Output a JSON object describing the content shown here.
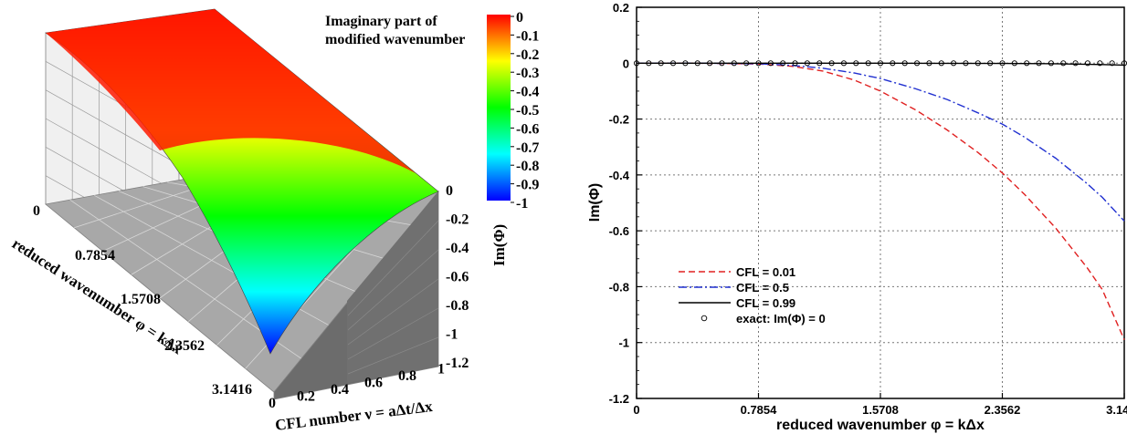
{
  "chart_data": [
    {
      "type": "surface",
      "colorbar": {
        "title_line1": "Imaginary part of",
        "title_line2": "modified wavenumber",
        "ticks": [
          "0",
          "-0.1",
          "-0.2",
          "-0.3",
          "-0.4",
          "-0.5",
          "-0.6",
          "-0.7",
          "-0.8",
          "-0.9",
          "-1"
        ],
        "range": [
          -1,
          0
        ],
        "colors": [
          "#0000ff",
          "#00ffff",
          "#00ff00",
          "#ffff00",
          "#ff0000"
        ]
      },
      "phi_axis": {
        "label": "reduced wavenumber φ = kΔx",
        "ticks": [
          "0",
          "0.7854",
          "1.5708",
          "2.3562",
          "3.1416"
        ]
      },
      "cfl_axis": {
        "label": "CFL number ν = aΔt/Δx",
        "ticks": [
          "0",
          "0.2",
          "0.4",
          "0.6",
          "0.8",
          "1"
        ]
      },
      "z_axis": {
        "label": "Im(Φ)",
        "ticks": [
          "0",
          "-0.2",
          "-0.4",
          "-0.6",
          "-0.8",
          "-1",
          "-1.2"
        ],
        "range": [
          -1.2,
          0
        ]
      },
      "surface_min": {
        "phi": 3.1416,
        "cfl": 0.01,
        "im_phi": -1.0
      }
    },
    {
      "type": "line",
      "xlabel": "reduced wavenumber φ = kΔx",
      "ylabel": "Im(Φ)",
      "xlim": [
        0,
        3.1416
      ],
      "ylim": [
        -1.2,
        0.2
      ],
      "x_ticks": [
        "0",
        "0.7854",
        "1.5708",
        "2.3562",
        "3.1416"
      ],
      "y_ticks": [
        "0.2",
        "0",
        "-0.2",
        "-0.4",
        "-0.6",
        "-0.8",
        "-1",
        "-1.2"
      ],
      "grid": true,
      "legend_position": "bottom-left",
      "series": [
        {
          "name": "CFL = 0.01",
          "color": "#e02020",
          "style": "dashed",
          "x": [
            0,
            0.4,
            0.7854,
            1.0,
            1.2,
            1.4,
            1.5708,
            1.8,
            2.0,
            2.2,
            2.3562,
            2.5,
            2.7,
            2.9,
            3.0,
            3.1416
          ],
          "y": [
            0,
            0,
            -0.003,
            -0.011,
            -0.028,
            -0.06,
            -0.1,
            -0.168,
            -0.239,
            -0.32,
            -0.393,
            -0.47,
            -0.59,
            -0.73,
            -0.81,
            -0.99
          ]
        },
        {
          "name": "CFL = 0.5",
          "color": "#2030d0",
          "style": "dashdot",
          "x": [
            0,
            0.4,
            0.7854,
            1.0,
            1.2,
            1.4,
            1.5708,
            1.8,
            2.0,
            2.2,
            2.3562,
            2.5,
            2.7,
            2.9,
            3.0,
            3.1416
          ],
          "y": [
            0,
            0,
            -0.002,
            -0.008,
            -0.018,
            -0.035,
            -0.055,
            -0.092,
            -0.13,
            -0.178,
            -0.218,
            -0.265,
            -0.34,
            -0.43,
            -0.48,
            -0.565
          ]
        },
        {
          "name": "CFL = 0.99",
          "color": "#000000",
          "style": "solid",
          "x": [
            0,
            0.7854,
            1.5708,
            2.3562,
            2.7,
            3.0,
            3.1416
          ],
          "y": [
            0,
            0,
            0,
            -0.001,
            -0.002,
            -0.005,
            -0.007
          ]
        },
        {
          "name": "exact: Im(Φ) = 0",
          "color": "#000000",
          "style": "circles",
          "x": [
            0,
            0.0785,
            0.1571,
            0.2356,
            0.3142,
            0.3927,
            0.4712,
            0.5498,
            0.6283,
            0.7069,
            0.7854,
            0.8639,
            0.9425,
            1.021,
            1.0996,
            1.1781,
            1.2566,
            1.3352,
            1.4137,
            1.4923,
            1.5708,
            1.6493,
            1.7279,
            1.8064,
            1.885,
            1.9635,
            2.042,
            2.1206,
            2.1991,
            2.2777,
            2.3562,
            2.4347,
            2.5133,
            2.5918,
            2.6704,
            2.7489,
            2.8274,
            2.906,
            2.9845,
            3.0631,
            3.1416
          ],
          "y": [
            0,
            0,
            0,
            0,
            0,
            0,
            0,
            0,
            0,
            0,
            0,
            0,
            0,
            0,
            0,
            0,
            0,
            0,
            0,
            0,
            0,
            0,
            0,
            0,
            0,
            0,
            0,
            0,
            0,
            0,
            0,
            0,
            0,
            0,
            0,
            0,
            0,
            0,
            0,
            0,
            0
          ]
        }
      ]
    }
  ]
}
